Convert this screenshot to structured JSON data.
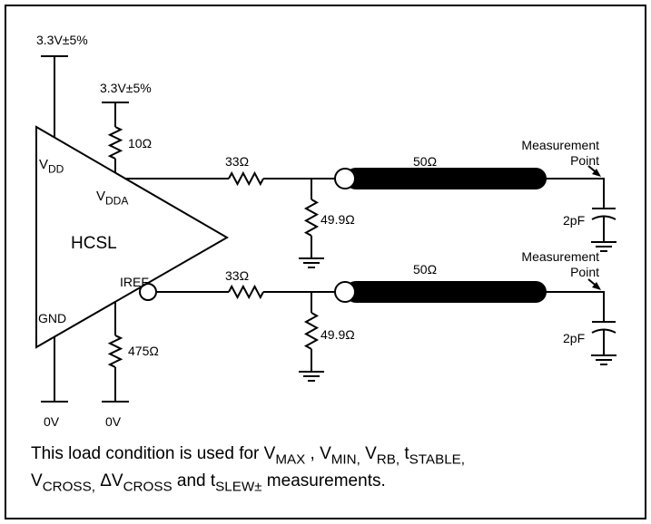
{
  "supplies": [
    "3.3V±5%",
    "3.3V±5%"
  ],
  "grounds": [
    "0V",
    "0V"
  ],
  "driver": {
    "label": "HCSL",
    "pins": [
      [
        {
          "t": "V"
        },
        {
          "t": "DD",
          "sub": true
        }
      ],
      [
        {
          "t": "V"
        },
        {
          "t": "DDA",
          "sub": true
        }
      ],
      [
        {
          "t": "IREF"
        }
      ],
      [
        {
          "t": "GND"
        }
      ]
    ]
  },
  "resistors": [
    "10Ω",
    "33Ω",
    "49.9Ω",
    "33Ω",
    "49.9Ω",
    "475Ω"
  ],
  "cables": [
    "50Ω",
    "50Ω"
  ],
  "measurement": [
    [
      "Measurement",
      "Point"
    ],
    [
      "Measurement",
      "Point"
    ]
  ],
  "capacitors": [
    "2pF",
    "2pF"
  ],
  "caption": [
    [
      {
        "t": "This load condition is used for V"
      },
      {
        "t": "MAX",
        "sub": true
      },
      {
        "t": " , V"
      },
      {
        "t": "MIN,",
        "sub": true
      },
      {
        "t": " V"
      },
      {
        "t": "RB,",
        "sub": true
      },
      {
        "t": " t"
      },
      {
        "t": "STABLE,",
        "sub": true
      }
    ],
    [
      {
        "t": "V"
      },
      {
        "t": "CROSS,",
        "sub": true
      },
      {
        "t": " ΔV"
      },
      {
        "t": "CROSS",
        "sub": true
      },
      {
        "t": " and t"
      },
      {
        "t": "SLEW±",
        "sub": true
      },
      {
        "t": " measurements."
      }
    ]
  ]
}
